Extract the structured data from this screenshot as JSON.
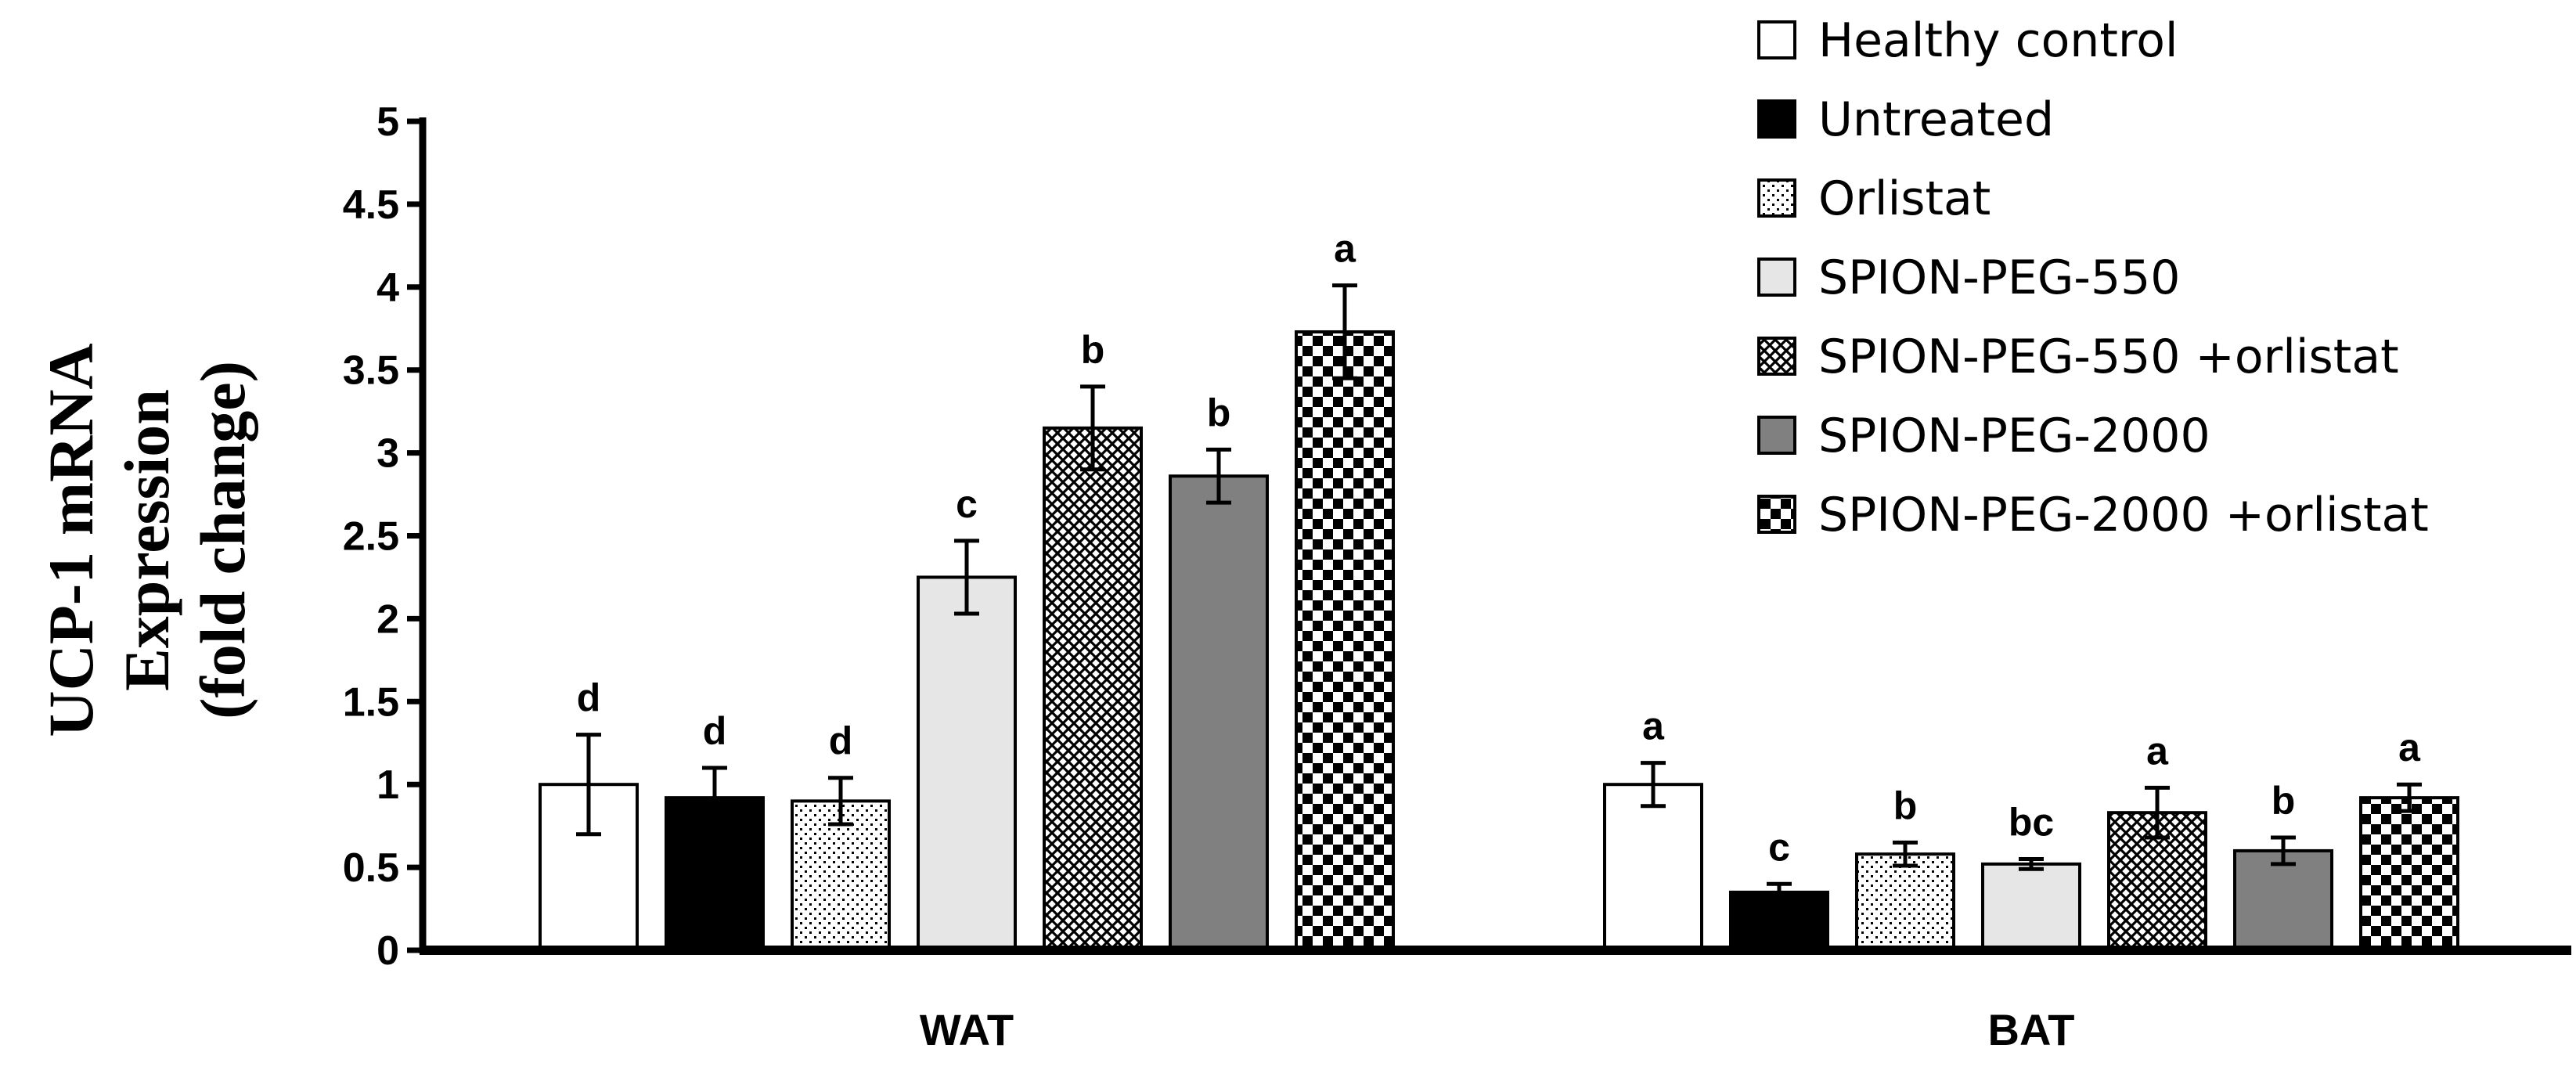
{
  "chart_data": {
    "type": "bar",
    "title": "",
    "ylabel_lines": [
      "UCP-1 mRNA",
      "Expression",
      "(fold change)"
    ],
    "xlabel": "",
    "ylim": [
      0,
      5
    ],
    "yticks": [
      0,
      0.5,
      1,
      1.5,
      2,
      2.5,
      3,
      3.5,
      4,
      4.5,
      5
    ],
    "ytick_labels": [
      "0",
      "0.5",
      "1",
      "1.5",
      "2",
      "2.5",
      "3",
      "3.5",
      "4",
      "4.5",
      "5"
    ],
    "categories": [
      "WAT",
      "BAT"
    ],
    "legend_position": "top-right",
    "series": [
      {
        "name": "Healthy control",
        "pattern": "white",
        "values": [
          1.0,
          1.0
        ],
        "errors": [
          0.3,
          0.13
        ],
        "letters": [
          "d",
          "a"
        ]
      },
      {
        "name": "Untreated",
        "pattern": "black",
        "values": [
          0.92,
          0.35
        ],
        "errors": [
          0.18,
          0.05
        ],
        "letters": [
          "d",
          "c"
        ]
      },
      {
        "name": "Orlistat",
        "pattern": "dots",
        "values": [
          0.9,
          0.58
        ],
        "errors": [
          0.14,
          0.07
        ],
        "letters": [
          "d",
          "b"
        ]
      },
      {
        "name": "SPION-PEG-550",
        "pattern": "lightgray",
        "values": [
          2.25,
          0.52
        ],
        "errors": [
          0.22,
          0.03
        ],
        "letters": [
          "c",
          "bc"
        ]
      },
      {
        "name": "SPION-PEG-550 +orlistat",
        "pattern": "crosshatch",
        "values": [
          3.15,
          0.83
        ],
        "errors": [
          0.25,
          0.15
        ],
        "letters": [
          "b",
          "a"
        ]
      },
      {
        "name": "SPION-PEG-2000",
        "pattern": "gray",
        "values": [
          2.86,
          0.6
        ],
        "errors": [
          0.16,
          0.08
        ],
        "letters": [
          "b",
          "b"
        ]
      },
      {
        "name": "SPION-PEG-2000 +orlistat",
        "pattern": "checker",
        "values": [
          3.73,
          0.92
        ],
        "errors": [
          0.28,
          0.08
        ],
        "letters": [
          "a",
          "a"
        ]
      }
    ]
  }
}
